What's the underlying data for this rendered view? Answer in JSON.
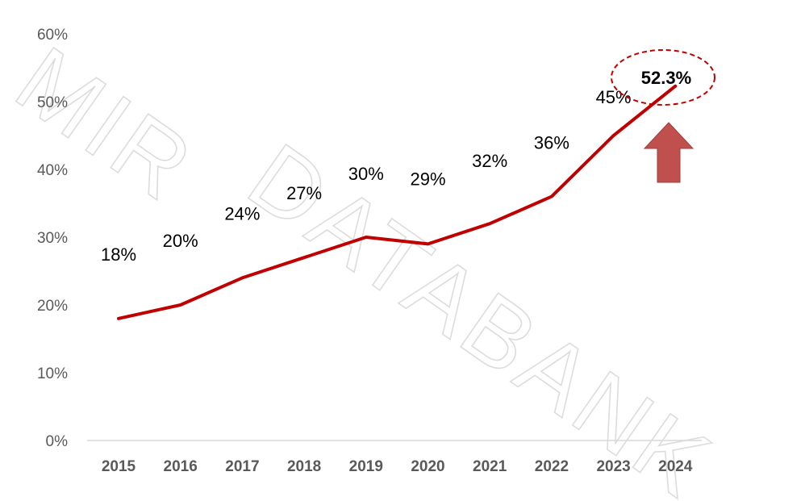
{
  "watermark": "MIR DATABANK",
  "colors": {
    "line": "#c00000",
    "arrow": "#c0504d",
    "axis": "#d9d9d9",
    "highlight": "#c00000"
  },
  "chart_data": {
    "type": "line",
    "x": [
      "2015",
      "2016",
      "2017",
      "2018",
      "2019",
      "2020",
      "2021",
      "2022",
      "2023",
      "2024"
    ],
    "series": [
      {
        "values": [
          18,
          20,
          24,
          27,
          30,
          29,
          32,
          36,
          45,
          52.3
        ]
      }
    ],
    "data_labels": [
      "18%",
      "20%",
      "24%",
      "27%",
      "30%",
      "29%",
      "32%",
      "36%",
      "45%",
      "52.3%"
    ],
    "y_ticks": [
      "0%",
      "10%",
      "20%",
      "30%",
      "40%",
      "50%",
      "60%"
    ],
    "ylim": [
      0,
      60
    ],
    "grid": false,
    "title": "",
    "xlabel": "",
    "ylabel": "",
    "highlight_point": 9
  }
}
